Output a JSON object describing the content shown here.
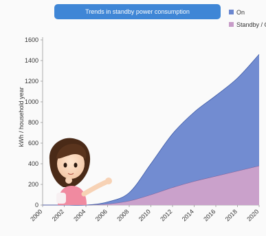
{
  "colors": {
    "on": "#6a86cf",
    "standby": "#c79cc8",
    "title_bg": "#3f86d6",
    "grid": "#d9d9d9"
  },
  "chart_data": {
    "type": "area",
    "title": "Trends in standby power consumption",
    "ylabel": "kWh / household year",
    "xlabel": "",
    "x": [
      2000,
      2002,
      2004,
      2006,
      2008,
      2010,
      2012,
      2014,
      2016,
      2018,
      2020
    ],
    "x_ticks": [
      "2000",
      "2002",
      "2004",
      "2006",
      "2008",
      "2010",
      "2012",
      "2014",
      "2016",
      "2018",
      "2020"
    ],
    "y_ticks": [
      "0",
      "200",
      "400",
      "600",
      "800",
      "1000",
      "1200",
      "1400",
      "1600"
    ],
    "ylim": [
      0,
      1600
    ],
    "grid": false,
    "legend_position": "top-right",
    "stacked": true,
    "series": [
      {
        "name": "Standby / Off",
        "values": [
          0,
          0,
          0,
          10,
          40,
          100,
          170,
          230,
          280,
          330,
          380
        ],
        "color": "#c79cc8"
      },
      {
        "name": "On",
        "values": [
          0,
          0,
          0,
          20,
          80,
          300,
          520,
          670,
          780,
          900,
          1080
        ],
        "color": "#6a86cf"
      }
    ]
  },
  "illustration": {
    "icon": "cartoon-girl-pointing"
  }
}
